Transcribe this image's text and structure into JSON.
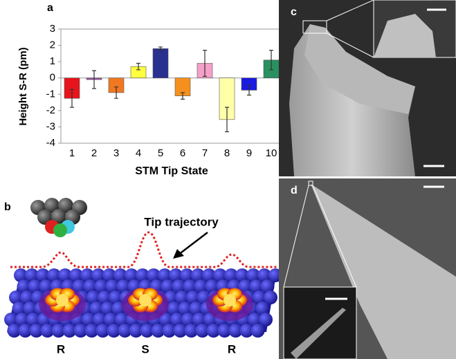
{
  "chart_data": {
    "type": "bar",
    "ylabel": "Height S-R (pm)",
    "xlabel": "STM Tip State",
    "categories": [
      "1",
      "2",
      "3",
      "4",
      "5",
      "6",
      "7",
      "8",
      "9",
      "10"
    ],
    "values": [
      -1.25,
      -0.1,
      -0.9,
      0.7,
      1.8,
      -1.1,
      0.9,
      -2.55,
      -0.75,
      1.1
    ],
    "errors": [
      0.55,
      0.55,
      0.35,
      0.2,
      0.1,
      0.2,
      0.8,
      0.75,
      0.3,
      0.6
    ],
    "colors": [
      "#e8141b",
      "#9a4fa0",
      "#f07820",
      "#ffff40",
      "#283090",
      "#f5901e",
      "#f4a0c8",
      "#ffffa8",
      "#1a1ae0",
      "#2a9060"
    ],
    "ylim": [
      -4,
      3
    ],
    "yticks": [
      -4,
      -3,
      -2,
      -1,
      0,
      1,
      2,
      3
    ]
  },
  "panels": {
    "a": "a",
    "b": "b",
    "c": "c",
    "d": "d"
  },
  "diagram": {
    "trajectory_label": "Tip trajectory",
    "sites": [
      "R",
      "S",
      "R"
    ]
  }
}
